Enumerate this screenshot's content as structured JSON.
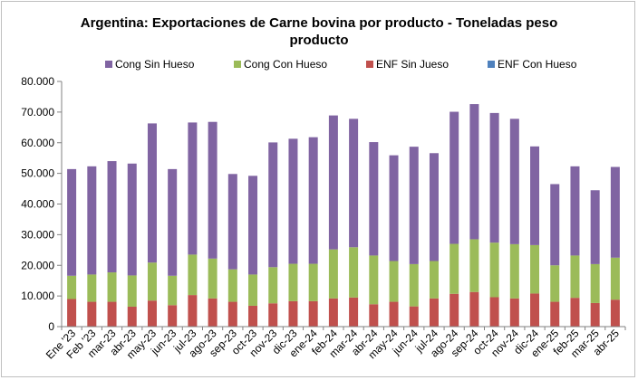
{
  "chart_data": {
    "type": "bar",
    "stacked": true,
    "title_line1": "Argentina: Exportaciones de Carne bovina por producto - Toneladas peso",
    "title_line2": "producto",
    "categories": [
      "Ene '23",
      "Feb '23",
      "mar-23",
      "abr-23",
      "may-23",
      "jun-23",
      "jul-23",
      "ago-23",
      "sep-23",
      "oct-23",
      "nov-23",
      "dic-23",
      "ene-24",
      "feb-24",
      "mar-24",
      "abr-24",
      "may-24",
      "jun-24",
      "jul-24",
      "ago-24",
      "sep-24",
      "oct-24",
      "nov-24",
      "dic-24",
      "ene-25",
      "feb-25",
      "mar-25",
      "abr-25"
    ],
    "y_ticks": [
      "0",
      "10.000",
      "20.000",
      "30.000",
      "40.000",
      "50.000",
      "60.000",
      "70.000",
      "80.000"
    ],
    "ylim": [
      0,
      80000
    ],
    "legend_position": "top",
    "series": [
      {
        "name": "ENF Con Hueso",
        "color": "#4f81bd",
        "values": [
          100,
          100,
          100,
          100,
          100,
          100,
          100,
          100,
          100,
          100,
          100,
          100,
          100,
          100,
          100,
          100,
          100,
          100,
          100,
          100,
          100,
          100,
          100,
          100,
          100,
          100,
          100,
          100
        ]
      },
      {
        "name": "ENF Sin Jueso",
        "color": "#c0504d",
        "values": [
          8900,
          8000,
          8000,
          6400,
          8400,
          6900,
          10200,
          9100,
          8000,
          6700,
          7500,
          8200,
          8200,
          9100,
          9400,
          7200,
          8000,
          6500,
          9100,
          10600,
          11200,
          9500,
          9100,
          10700,
          8000,
          9300,
          7600,
          8700
        ]
      },
      {
        "name": "Cong Con Hueso",
        "color": "#9bbb59",
        "values": [
          7600,
          8900,
          9600,
          10200,
          12400,
          9600,
          13200,
          13000,
          10600,
          10200,
          11800,
          12200,
          12200,
          16000,
          16400,
          15900,
          13300,
          13800,
          12200,
          16300,
          17200,
          17800,
          17700,
          15800,
          11900,
          13800,
          12700,
          13700
        ]
      },
      {
        "name": "Cong Sin Hueso",
        "color": "#8064a2",
        "values": [
          34800,
          35300,
          36300,
          36500,
          45400,
          34800,
          43100,
          44600,
          31100,
          32200,
          40700,
          40800,
          41300,
          43700,
          41900,
          37000,
          34500,
          38300,
          35200,
          43100,
          44100,
          42300,
          40900,
          32200,
          26500,
          29100,
          24100,
          29600
        ]
      }
    ],
    "legend_order": [
      "Cong Sin Hueso",
      "Cong Con Hueso",
      "ENF Sin Jueso",
      "ENF Con Hueso"
    ]
  }
}
